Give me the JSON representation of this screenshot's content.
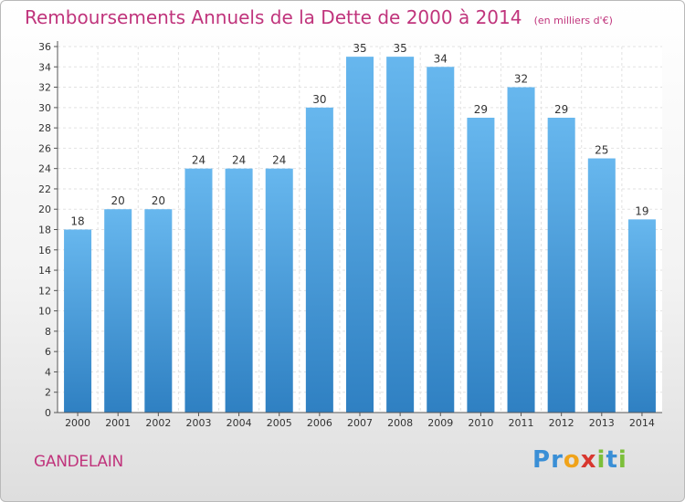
{
  "chart_data": {
    "type": "bar",
    "title": "Remboursements Annuels de la Dette de 2000 à 2014",
    "unit_note": "(en milliers d'€)",
    "categories": [
      "2000",
      "2001",
      "2002",
      "2003",
      "2004",
      "2005",
      "2006",
      "2007",
      "2008",
      "2009",
      "2010",
      "2011",
      "2012",
      "2013",
      "2014"
    ],
    "values": [
      18,
      20,
      20,
      24,
      24,
      24,
      30,
      35,
      35,
      34,
      29,
      32,
      29,
      25,
      19
    ],
    "ylim": [
      0,
      36
    ],
    "yticks": [
      0,
      2,
      4,
      6,
      8,
      10,
      12,
      14,
      16,
      18,
      20,
      22,
      24,
      26,
      28,
      30,
      32,
      34,
      36
    ],
    "xlabel": "",
    "ylabel": "",
    "grid": true,
    "colors": {
      "bar_top": "#67b7ee",
      "bar_bottom": "#2f80c2",
      "title": "#c0347c"
    }
  },
  "footer": {
    "place_name": "GANDELAIN",
    "logo_letters": [
      {
        "char": "P",
        "color": "#3a8fd6"
      },
      {
        "char": "r",
        "color": "#3a8fd6"
      },
      {
        "char": "o",
        "color": "#f0a31a"
      },
      {
        "char": "x",
        "color": "#d8372f"
      },
      {
        "char": "i",
        "color": "#7cbf3a"
      },
      {
        "char": "t",
        "color": "#3a8fd6"
      },
      {
        "char": "i",
        "color": "#7cbf3a"
      }
    ]
  }
}
